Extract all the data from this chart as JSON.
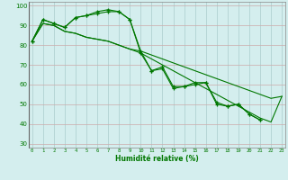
{
  "xlabel": "Humidité relative (%)",
  "x": [
    0,
    1,
    2,
    3,
    4,
    5,
    6,
    7,
    8,
    9,
    10,
    11,
    12,
    13,
    14,
    15,
    16,
    17,
    18,
    19,
    20,
    21,
    22,
    23
  ],
  "line_zigzag1": [
    82,
    93,
    91,
    89,
    94,
    95,
    97,
    98,
    97,
    93,
    77,
    67,
    69,
    59,
    59,
    61,
    61,
    51,
    49,
    50,
    45,
    42,
    null,
    null
  ],
  "line_zigzag2": [
    82,
    93,
    91,
    89,
    94,
    95,
    96,
    97,
    97,
    93,
    76,
    67,
    68,
    58,
    59,
    60,
    61,
    50,
    49,
    50,
    45,
    42,
    null,
    null
  ],
  "line_straight1": [
    82,
    91,
    90,
    87,
    86,
    84,
    83,
    82,
    80,
    78,
    77,
    75,
    73,
    71,
    69,
    67,
    65,
    63,
    61,
    59,
    57,
    55,
    53,
    54
  ],
  "line_straight2": [
    82,
    91,
    90,
    87,
    86,
    84,
    83,
    82,
    80,
    78,
    76,
    73,
    70,
    67,
    64,
    61,
    58,
    55,
    52,
    49,
    46,
    43,
    41,
    54
  ],
  "ylim": [
    28,
    102
  ],
  "xlim": [
    -0.3,
    23.3
  ],
  "yticks": [
    30,
    40,
    50,
    60,
    70,
    80,
    90,
    100
  ],
  "xticks": [
    0,
    1,
    2,
    3,
    4,
    5,
    6,
    7,
    8,
    9,
    10,
    11,
    12,
    13,
    14,
    15,
    16,
    17,
    18,
    19,
    20,
    21,
    22,
    23
  ],
  "line_color": "#007700",
  "bg_color": "#d4eeee",
  "grid_color": "#aacccc",
  "grid_red_color": "#ddaaaa"
}
